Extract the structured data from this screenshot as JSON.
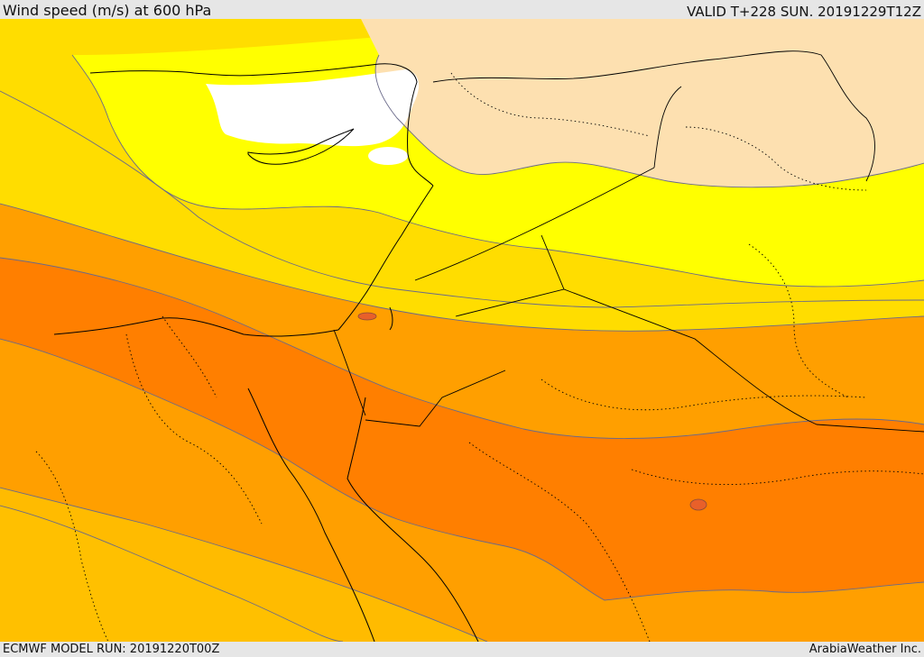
{
  "header": {
    "title": "Wind speed (m/s) at 600 hPa",
    "valid_time": "VALID T+228 SUN. 20191229T12Z"
  },
  "footer": {
    "model_run": "ECMWF MODEL RUN: 20191220T00Z",
    "credit": "ArabiaWeather Inc."
  },
  "map": {
    "variable": "wind speed",
    "units": "m/s",
    "level": "600 hPa",
    "shading_colors": [
      "#ffffff",
      "#fde0b0",
      "#ffff00",
      "#ffdd00",
      "#ffbb00",
      "#ff9f00",
      "#ff7f00",
      "#e86a20"
    ],
    "land_sea_fill": "shaded contour bands",
    "coastline_color": "#000000",
    "border_style": "solid",
    "admin_border_style": "dotted"
  }
}
